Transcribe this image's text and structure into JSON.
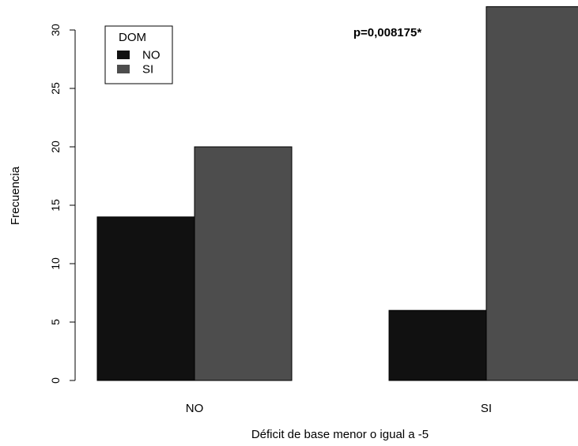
{
  "chart_data": {
    "type": "bar",
    "categories": [
      "NO",
      "SI"
    ],
    "series": [
      {
        "name": "NO",
        "values": [
          14,
          6
        ],
        "color": "#111111"
      },
      {
        "name": "SI",
        "values": [
          20,
          32
        ],
        "color": "#4d4d4d"
      }
    ],
    "xlabel": "Déficit de base menor o igual a -5",
    "ylabel": "Frecuencia",
    "ylim": [
      0,
      30
    ],
    "yticks": [
      0,
      5,
      10,
      15,
      20,
      25,
      30
    ],
    "legend": {
      "title": "DOM",
      "placement": "top-left"
    },
    "annotation": "p=0,008175*",
    "grid": false
  }
}
